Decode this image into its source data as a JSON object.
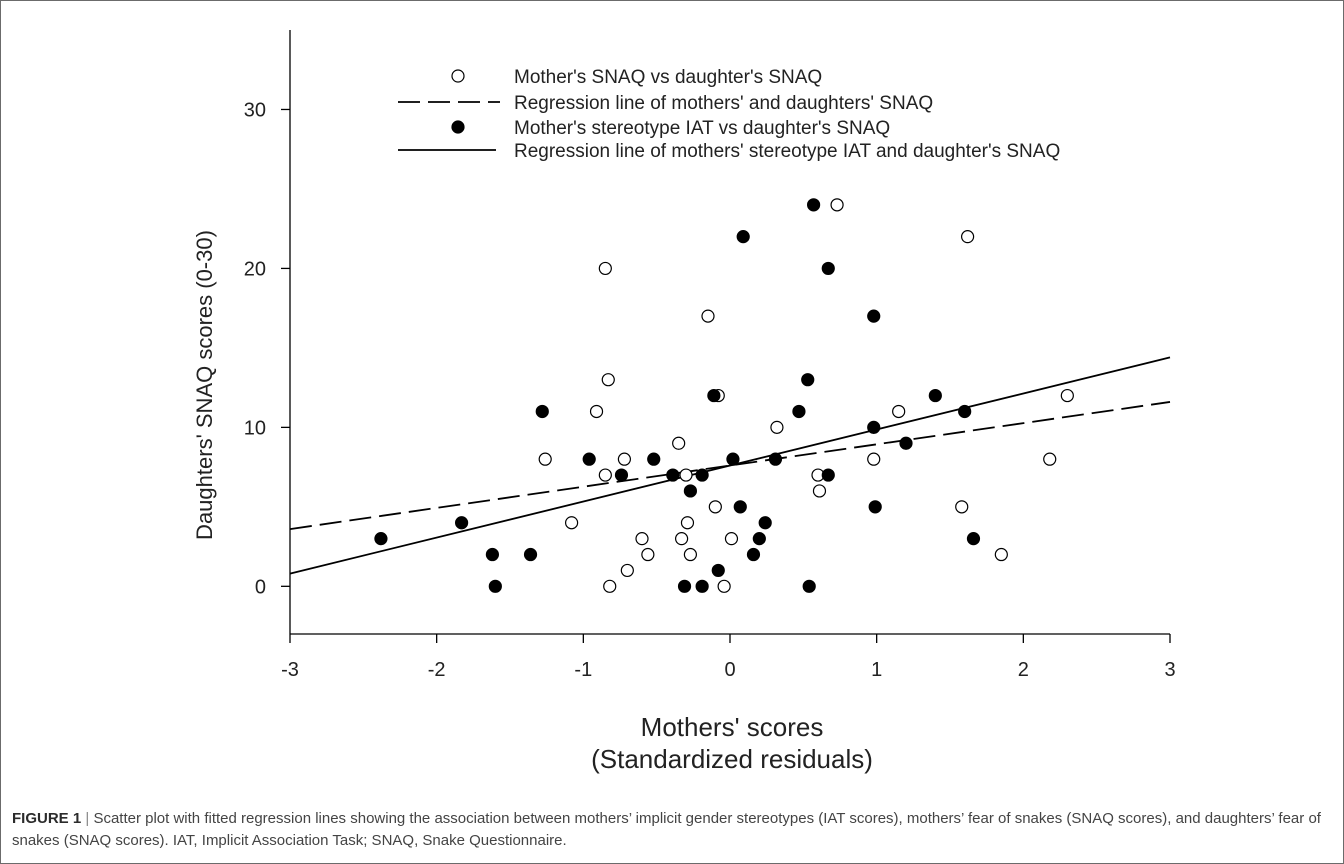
{
  "chart_data": {
    "type": "scatter",
    "xlabel_line1": "Mothers' scores",
    "xlabel_line2": "(Standardized residuals)",
    "ylabel": "Daughters' SNAQ scores (0-30)",
    "xlim": [
      -3,
      3
    ],
    "ylim": [
      -3,
      35
    ],
    "xticks": [
      -3,
      -2,
      -1,
      0,
      1,
      2,
      3
    ],
    "yticks": [
      0,
      10,
      20,
      30
    ],
    "grid": false,
    "legend_position": "top",
    "legend": [
      {
        "label": "Mother's SNAQ vs daughter's SNAQ",
        "kind": "open-circle"
      },
      {
        "label": "Regression line of mothers' and daughters' SNAQ",
        "kind": "dashed-line"
      },
      {
        "label": "Mother's stereotype IAT vs daughter's SNAQ",
        "kind": "filled-circle"
      },
      {
        "label": "Regression line of mothers' stereotype IAT and daughter's SNAQ",
        "kind": "solid-line"
      }
    ],
    "series": [
      {
        "name": "Mother's SNAQ vs daughter's SNAQ",
        "marker": "open",
        "points": [
          [
            0.73,
            24
          ],
          [
            1.62,
            22
          ],
          [
            -0.85,
            20
          ],
          [
            -0.15,
            17
          ],
          [
            -0.83,
            13
          ],
          [
            2.3,
            12
          ],
          [
            -0.08,
            12
          ],
          [
            -0.91,
            11
          ],
          [
            1.15,
            11
          ],
          [
            0.32,
            10
          ],
          [
            -0.35,
            9
          ],
          [
            -1.26,
            8
          ],
          [
            -0.72,
            8
          ],
          [
            0.98,
            8
          ],
          [
            2.18,
            8
          ],
          [
            -0.85,
            7
          ],
          [
            -0.3,
            7
          ],
          [
            0.6,
            7
          ],
          [
            0.61,
            6
          ],
          [
            -0.1,
            5
          ],
          [
            1.58,
            5
          ],
          [
            -1.08,
            4
          ],
          [
            -0.29,
            4
          ],
          [
            -0.33,
            3
          ],
          [
            -0.6,
            3
          ],
          [
            0.01,
            3
          ],
          [
            -0.56,
            2
          ],
          [
            -0.27,
            2
          ],
          [
            1.85,
            2
          ],
          [
            -0.7,
            1
          ],
          [
            -0.82,
            0
          ],
          [
            -0.04,
            0
          ]
        ]
      },
      {
        "name": "Mother's stereotype IAT vs daughter's SNAQ",
        "marker": "filled",
        "points": [
          [
            0.57,
            24
          ],
          [
            0.09,
            22
          ],
          [
            0.67,
            20
          ],
          [
            0.98,
            17
          ],
          [
            0.53,
            13
          ],
          [
            -0.11,
            12
          ],
          [
            1.4,
            12
          ],
          [
            -1.28,
            11
          ],
          [
            0.47,
            11
          ],
          [
            1.6,
            11
          ],
          [
            0.98,
            10
          ],
          [
            1.2,
            9
          ],
          [
            -0.96,
            8
          ],
          [
            -0.52,
            8
          ],
          [
            0.02,
            8
          ],
          [
            0.31,
            8
          ],
          [
            -0.74,
            7
          ],
          [
            -0.39,
            7
          ],
          [
            -0.19,
            7
          ],
          [
            0.67,
            7
          ],
          [
            -0.27,
            6
          ],
          [
            0.07,
            5
          ],
          [
            0.99,
            5
          ],
          [
            -1.83,
            4
          ],
          [
            0.24,
            4
          ],
          [
            -2.38,
            3
          ],
          [
            0.2,
            3
          ],
          [
            1.66,
            3
          ],
          [
            -1.62,
            2
          ],
          [
            -1.36,
            2
          ],
          [
            0.16,
            2
          ],
          [
            -0.08,
            1
          ],
          [
            -1.6,
            0
          ],
          [
            -0.31,
            0
          ],
          [
            -0.19,
            0
          ],
          [
            0.54,
            0
          ]
        ]
      }
    ],
    "regression_lines": [
      {
        "name": "Regression line of mothers' and daughters' SNAQ",
        "style": "dashed",
        "x": [
          -3,
          3
        ],
        "y": [
          3.6,
          11.6
        ]
      },
      {
        "name": "Regression line of mothers' stereotype IAT and daughter's SNAQ",
        "style": "solid",
        "x": [
          -3,
          3
        ],
        "y": [
          0.8,
          14.4
        ]
      }
    ]
  },
  "caption": {
    "label": "FIGURE 1",
    "separator": "|",
    "text": "Scatter plot with fitted regression lines showing the association between mothers’ implicit gender stereotypes (IAT scores), mothers’ fear of snakes (SNAQ scores), and daughters’ fear of snakes (SNAQ scores). IAT, Implicit Association Task; SNAQ, Snake Questionnaire."
  }
}
